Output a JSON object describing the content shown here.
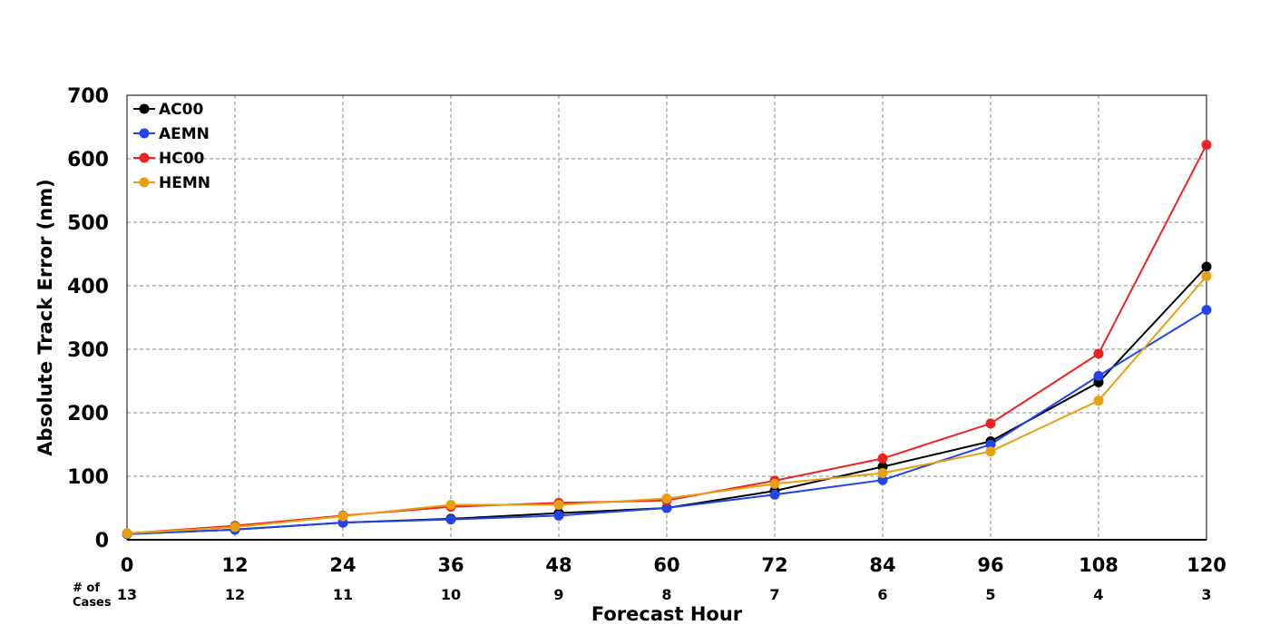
{
  "chart_data": {
    "type": "line",
    "xlabel": "Forecast Hour",
    "ylabel": "Absolute Track Error (nm)",
    "xlim": [
      0,
      120
    ],
    "ylim": [
      0,
      700
    ],
    "x_ticks": [
      "0",
      "12",
      "24",
      "36",
      "48",
      "60",
      "72",
      "84",
      "96",
      "108",
      "120"
    ],
    "y_ticks": [
      "0",
      "100",
      "200",
      "300",
      "400",
      "500",
      "600",
      "700"
    ],
    "grid": true,
    "legend_position": "top-left",
    "x": [
      0,
      12,
      24,
      36,
      48,
      60,
      72,
      84,
      96,
      108,
      120
    ],
    "cases_label": [
      "# of",
      "Cases"
    ],
    "cases": [
      "13",
      "12",
      "11",
      "10",
      "9",
      "8",
      "7",
      "6",
      "5",
      "4",
      "3"
    ],
    "series": [
      {
        "name": "AC00",
        "color": "#000000",
        "values": [
          9,
          16,
          27,
          33,
          42,
          50,
          77,
          115,
          155,
          248,
          430
        ]
      },
      {
        "name": "AEMN",
        "color": "#2244ee",
        "values": [
          9,
          16,
          27,
          32,
          38,
          50,
          71,
          94,
          150,
          258,
          362
        ]
      },
      {
        "name": "HC00",
        "color": "#ee2222",
        "values": [
          10,
          22,
          38,
          52,
          58,
          62,
          93,
          128,
          183,
          293,
          622
        ]
      },
      {
        "name": "HEMN",
        "color": "#e8a010",
        "values": [
          10,
          20,
          37,
          55,
          55,
          65,
          88,
          105,
          139,
          219,
          415
        ]
      }
    ]
  }
}
